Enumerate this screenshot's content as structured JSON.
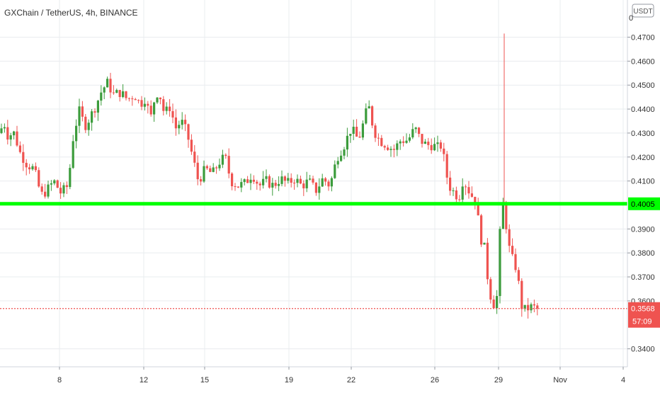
{
  "chart_title": "GXChain / TetherUS, 4h, BINANCE",
  "currency_badge": "USDT",
  "colors": {
    "up": "#26a69a",
    "up_candle": "#3c9c3c",
    "down": "#ef5350",
    "support_line": "#00ff00",
    "last_price": "#ef5350",
    "grid": "#e9ecef",
    "axis_text": "#333333"
  },
  "chart_data": {
    "type": "candlestick",
    "title": "GXChain / TetherUS, 4h, BINANCE",
    "ylim": [
      0.3325,
      0.4855
    ],
    "y_ticks": [
      "0.3400",
      "0.3600",
      "0.3700",
      "0.3800",
      "0.3900",
      "0.4100",
      "0.4200",
      "0.4300",
      "0.4400",
      "0.4500",
      "0.4600",
      "0.4700"
    ],
    "y_tick_values": [
      0.34,
      0.36,
      0.37,
      0.38,
      0.39,
      0.41,
      0.42,
      0.43,
      0.44,
      0.45,
      0.46,
      0.47
    ],
    "top_tick_partial": "0",
    "x_ticks": [
      "8",
      "12",
      "15",
      "19",
      "22",
      "26",
      "29",
      "Nov",
      "4"
    ],
    "support_level": 0.4005,
    "support_label": "0.4005",
    "last_price": 0.3568,
    "last_price_label": "0.3568",
    "countdown_label": "57:09",
    "grid": true,
    "candles_anchor_path": [
      [
        0,
        0.43
      ],
      [
        5,
        0.435
      ],
      [
        11,
        0.429
      ],
      [
        20,
        0.43
      ],
      [
        28,
        0.422
      ],
      [
        38,
        0.417
      ],
      [
        48,
        0.415
      ],
      [
        58,
        0.404
      ],
      [
        66,
        0.406
      ],
      [
        76,
        0.41
      ],
      [
        86,
        0.405
      ],
      [
        96,
        0.408
      ],
      [
        104,
        0.43
      ],
      [
        112,
        0.439
      ],
      [
        120,
        0.433
      ],
      [
        128,
        0.437
      ],
      [
        136,
        0.442
      ],
      [
        144,
        0.448
      ],
      [
        152,
        0.451
      ],
      [
        160,
        0.446
      ],
      [
        170,
        0.447
      ],
      [
        180,
        0.444
      ],
      [
        190,
        0.446
      ],
      [
        198,
        0.442
      ],
      [
        206,
        0.445
      ],
      [
        212,
        0.435
      ],
      [
        218,
        0.444
      ],
      [
        224,
        0.448
      ],
      [
        232,
        0.438
      ],
      [
        240,
        0.441
      ],
      [
        248,
        0.432
      ],
      [
        256,
        0.435
      ],
      [
        264,
        0.43
      ],
      [
        272,
        0.42
      ],
      [
        280,
        0.41
      ],
      [
        290,
        0.415
      ],
      [
        300,
        0.413
      ],
      [
        310,
        0.418
      ],
      [
        318,
        0.42
      ],
      [
        326,
        0.41
      ],
      [
        336,
        0.408
      ],
      [
        346,
        0.409
      ],
      [
        356,
        0.413
      ],
      [
        366,
        0.408
      ],
      [
        376,
        0.41
      ],
      [
        386,
        0.408
      ],
      [
        396,
        0.411
      ],
      [
        406,
        0.409
      ],
      [
        416,
        0.411
      ],
      [
        426,
        0.408
      ],
      [
        436,
        0.41
      ],
      [
        446,
        0.406
      ],
      [
        456,
        0.411
      ],
      [
        466,
        0.408
      ],
      [
        476,
        0.42
      ],
      [
        486,
        0.425
      ],
      [
        496,
        0.432
      ],
      [
        506,
        0.427
      ],
      [
        514,
        0.435
      ],
      [
        520,
        0.442
      ],
      [
        528,
        0.431
      ],
      [
        536,
        0.427
      ],
      [
        546,
        0.425
      ],
      [
        556,
        0.423
      ],
      [
        566,
        0.427
      ],
      [
        576,
        0.427
      ],
      [
        586,
        0.432
      ],
      [
        594,
        0.427
      ],
      [
        602,
        0.425
      ],
      [
        610,
        0.425
      ],
      [
        618,
        0.424
      ],
      [
        624,
        0.425
      ],
      [
        630,
        0.413
      ],
      [
        636,
        0.407
      ],
      [
        642,
        0.405
      ],
      [
        648,
        0.403
      ],
      [
        654,
        0.411
      ],
      [
        660,
        0.407
      ],
      [
        666,
        0.404
      ],
      [
        672,
        0.402
      ],
      [
        678,
        0.387
      ],
      [
        684,
        0.382
      ],
      [
        690,
        0.366
      ],
      [
        696,
        0.358
      ],
      [
        702,
        0.362
      ],
      [
        708,
        0.401
      ],
      [
        712,
        0.399
      ],
      [
        718,
        0.383
      ],
      [
        724,
        0.377
      ],
      [
        730,
        0.373
      ],
      [
        736,
        0.358
      ],
      [
        742,
        0.356
      ],
      [
        748,
        0.3575
      ],
      [
        754,
        0.3572
      ],
      [
        760,
        0.3568
      ]
    ],
    "spike": {
      "x": 712,
      "high": 0.4715
    }
  }
}
